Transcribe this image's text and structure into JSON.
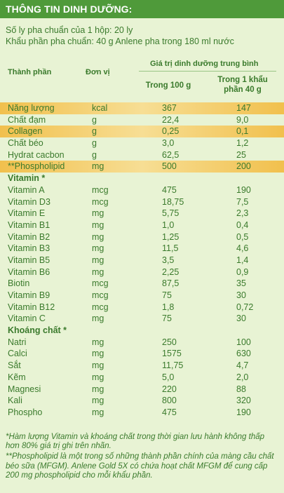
{
  "header": {
    "title": "THÔNG TIN DINH DƯỠNG:"
  },
  "intro": {
    "line1": "Số ly pha chuẩn của 1 hộp: 20 ly",
    "line2": "Khẩu phần pha chuẩn: 40 g Anlene pha trong 180 ml nước"
  },
  "table": {
    "col_ingredient": "Thành phần",
    "col_unit": "Đơn vị",
    "col_group": "Giá trị dinh dưỡng trung bình",
    "col_per100_label": "Trong 100 g",
    "col_perserving_line1": "Trong 1 khẩu",
    "col_perserving_line2": "phần 40 g",
    "rows": [
      {
        "name": "Năng lượng",
        "unit": "kcal",
        "per100": "367",
        "perserving": "147",
        "highlight": true
      },
      {
        "name": "Chất đạm",
        "unit": "g",
        "per100": "22,4",
        "perserving": "9,0"
      },
      {
        "name": "Collagen",
        "unit": "g",
        "per100": "0,25",
        "perserving": "0,1",
        "highlight": true
      },
      {
        "name": "Chất béo",
        "unit": "g",
        "per100": "3,0",
        "perserving": "1,2"
      },
      {
        "name": "Hydrat cacbon",
        "unit": "g",
        "per100": "62,5",
        "perserving": "25"
      },
      {
        "name": "**Phospholipid",
        "unit": "mg",
        "per100": "500",
        "perserving": "200",
        "highlight": true
      },
      {
        "name": "Vitamin *",
        "unit": "",
        "per100": "",
        "perserving": "",
        "section": true
      },
      {
        "name": "Vitamin A",
        "unit": "mcg",
        "per100": "475",
        "perserving": "190"
      },
      {
        "name": "Vitamin D3",
        "unit": "mcg",
        "per100": "18,75",
        "perserving": "7,5"
      },
      {
        "name": "Vitamin E",
        "unit": "mg",
        "per100": "5,75",
        "perserving": "2,3"
      },
      {
        "name": "Vitamin B1",
        "unit": "mg",
        "per100": "1,0",
        "perserving": "0,4"
      },
      {
        "name": "Vitamin B2",
        "unit": "mg",
        "per100": "1,25",
        "perserving": "0,5"
      },
      {
        "name": "Vitamin B3",
        "unit": "mg",
        "per100": "11,5",
        "perserving": "4,6"
      },
      {
        "name": "Vitamin B5",
        "unit": "mg",
        "per100": "3,5",
        "perserving": "1,4"
      },
      {
        "name": "Vitamin B6",
        "unit": "mg",
        "per100": "2,25",
        "perserving": "0,9"
      },
      {
        "name": "Biotin",
        "unit": "mcg",
        "per100": "87,5",
        "perserving": "35"
      },
      {
        "name": "Vitamin B9",
        "unit": "mcg",
        "per100": "75",
        "perserving": "30"
      },
      {
        "name": "Vitamin B12",
        "unit": "mcg",
        "per100": "1,8",
        "perserving": "0,72"
      },
      {
        "name": "Vitamin C",
        "unit": "mg",
        "per100": "75",
        "perserving": "30"
      },
      {
        "name": "Khoáng chất *",
        "unit": "",
        "per100": "",
        "perserving": "",
        "section": true
      },
      {
        "name": "Natri",
        "unit": "mg",
        "per100": "250",
        "perserving": "100"
      },
      {
        "name": "Calci",
        "unit": "mg",
        "per100": "1575",
        "perserving": "630"
      },
      {
        "name": "Sắt",
        "unit": "mg",
        "per100": "11,75",
        "perserving": "4,7"
      },
      {
        "name": "Kẽm",
        "unit": "mg",
        "per100": "5,0",
        "perserving": "2,0"
      },
      {
        "name": "Magnesi",
        "unit": "mg",
        "per100": "220",
        "perserving": "88"
      },
      {
        "name": "Kali",
        "unit": "mg",
        "per100": "800",
        "perserving": "320"
      },
      {
        "name": "Phospho",
        "unit": "mg",
        "per100": "475",
        "perserving": "190"
      }
    ]
  },
  "footnotes": {
    "note1": "*Hàm lượng Vitamin và khoáng chất trong thời gian lưu hành không thấp hơn 80% giá trị ghi trên nhãn.",
    "note2": "**Phospholipid là một trong số những thành phần chính của màng cầu chất béo sữa (MFGM). Anlene Gold 5X có chứa hoạt chất MFGM để cung cấp 200 mg phospholipid cho mỗi khẩu phần."
  },
  "colors": {
    "header_bg": "#4f9a3a",
    "page_bg": "#e8f3d4",
    "text": "#3a7a2c",
    "highlight": "#f1c04d"
  }
}
